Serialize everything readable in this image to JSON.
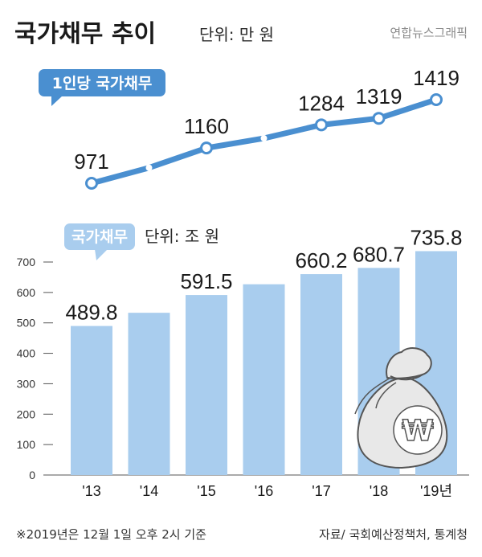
{
  "header": {
    "title": "국가채무 추이",
    "unit": "단위: 만 원",
    "credit": "연합뉴스그래픽"
  },
  "footer": {
    "note": "※2019년은 12월 1일 오후 2시 기준",
    "source": "자료/ 국회예산정책처, 통계청"
  },
  "colors": {
    "line": "#4a8fd0",
    "bar": "#a9cdee",
    "pill_dark": "#4a8fd0",
    "pill_light": "#a9cdee"
  },
  "chart_data": [
    {
      "type": "line",
      "legend_label": "1인당 국가채무",
      "categories": [
        "'13",
        "'14",
        "'15",
        "'16",
        "'17",
        "'18",
        "'19년"
      ],
      "values": [
        971,
        1054,
        1160,
        1212,
        1284,
        1319,
        1419
      ],
      "data_labels": [
        "971",
        "",
        "1160",
        "",
        "1284",
        "1319",
        "1419"
      ]
    },
    {
      "type": "bar",
      "legend_label": "국가채무",
      "unit": "단위: 조 원",
      "categories": [
        "'13",
        "'14",
        "'15",
        "'16",
        "'17",
        "'18",
        "'19년"
      ],
      "values": [
        489.8,
        533.2,
        591.5,
        626.9,
        660.2,
        680.7,
        735.8
      ],
      "data_labels": [
        "489.8",
        "",
        "591.5",
        "",
        "660.2",
        "680.7",
        "735.8"
      ],
      "yticks": [
        0,
        100,
        200,
        300,
        400,
        500,
        600,
        700
      ],
      "ylim": [
        0,
        700
      ]
    }
  ]
}
